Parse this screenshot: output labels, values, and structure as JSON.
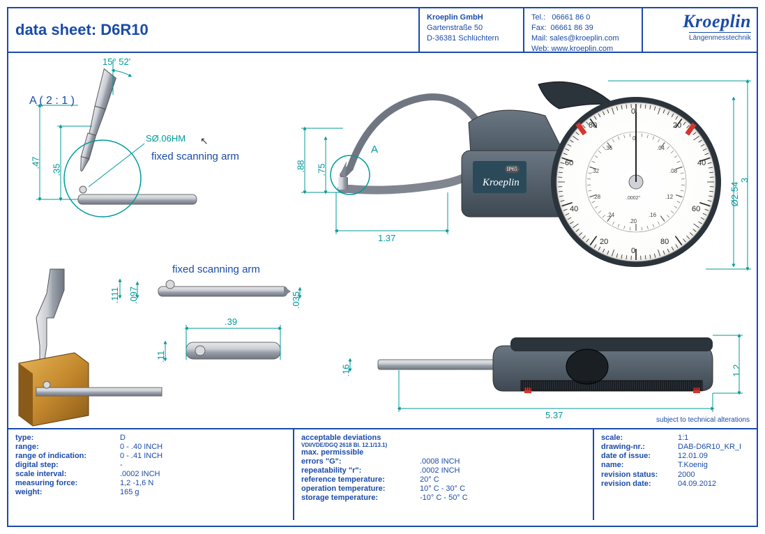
{
  "colors": {
    "frame": "#1a4ba8",
    "dim": "#009999",
    "steel_light": "#c9ccd2",
    "steel_mid": "#9aa0ab",
    "steel_dark": "#6d7480",
    "body_dark": "#3d4852",
    "body_blue": "#2a4a5a",
    "dial_face": "#fdfdfb",
    "red": "#d4362f",
    "brass": "#c68a2e",
    "brass_dark": "#8a5a18"
  },
  "header": {
    "title_prefix": "data sheet:  ",
    "title_model": "D6R10",
    "company": "Kroeplin GmbH",
    "street": "Gartenstraße 50",
    "city": "D-36381 Schlüchtern",
    "tel_label": "Tel.:",
    "tel": "06661 86 0",
    "fax_label": "Fax:",
    "fax": "06661 86 39",
    "mail_label": "Mail:",
    "mail": "sales@kroeplin.com",
    "web_label": "Web:",
    "web": "www.kroeplin.com",
    "logo": "Kroeplin",
    "logo_sub": "Längenmesstechnik"
  },
  "drawing": {
    "section_label": "A ( 2 : 1 )",
    "angle": "15° 52'",
    "dim_47": ".47",
    "dim_35": ".35",
    "sphere": "SØ.06HM",
    "fixed_arm": "fixed scanning arm",
    "dim_88": ".88",
    "dim_75": ".75",
    "detail_A": "A",
    "dim_137": "1.37",
    "dim_111": ".111",
    "dim_097": ".097",
    "dim_035": ".035",
    "dim_39": ".39",
    "dim_11": ".11",
    "dim_16": ".16",
    "dim_537": "5.37",
    "dim_12": "1.2",
    "dim_3": "3",
    "dim_d254": "Ø2.54",
    "gauge_brand": "Kroeplin",
    "ip": "IP65",
    "dial_unit": ".0002\"",
    "dial_outer_ticks": [
      "0",
      "20",
      "40",
      "60",
      "80",
      "0",
      "20",
      "40",
      "60",
      "80"
    ],
    "dial_inner_vals": [
      "0",
      ".04",
      ".08",
      ".12",
      ".16",
      ".20",
      ".24",
      ".28",
      ".32",
      ".36"
    ],
    "alteration_note": "subject to technical alterations"
  },
  "footer": {
    "left": [
      {
        "lab": "type:",
        "val": "D"
      },
      {
        "lab": "range:",
        "val": "0 - .40 INCH"
      },
      {
        "lab": "range of indication:",
        "val": "0 - .41 INCH"
      },
      {
        "lab": "digital step:",
        "val": "-"
      },
      {
        "lab": "scale interval:",
        "val": ".0002 INCH"
      },
      {
        "lab": "measuring force:",
        "val": "1,2 -1,6 N"
      },
      {
        "lab": "weight:",
        "val": "165 g"
      }
    ],
    "mid_head1": "acceptable deviations",
    "mid_head2": "VDI/VDE/DGQ 2618 Bl. 12.1/13.1)",
    "mid": [
      {
        "lab": "max. permissible",
        "val": ""
      },
      {
        "lab": "errors \"G\":",
        "val": ".0008 INCH"
      },
      {
        "lab": "repeatability \"r\":",
        "val": ".0002 INCH"
      },
      {
        "lab": "reference temperature:",
        "val": "20° C"
      },
      {
        "lab": "operation temperature:",
        "val": "10° C  -  30° C"
      },
      {
        "lab": "storage temperature:",
        "val": "-10° C  -  50° C"
      }
    ],
    "right": [
      {
        "lab": "scale:",
        "val": "1:1"
      },
      {
        "lab": "drawing-nr.:",
        "val": "DAB-D6R10_KR_I"
      },
      {
        "lab": "date of issue:",
        "val": "12.01.09"
      },
      {
        "lab": "name:",
        "val": "T.Koenig"
      },
      {
        "lab": "",
        "val": ""
      },
      {
        "lab": "revision status:",
        "val": "2000"
      },
      {
        "lab": "revision date:",
        "val": "04.09.2012"
      }
    ]
  }
}
